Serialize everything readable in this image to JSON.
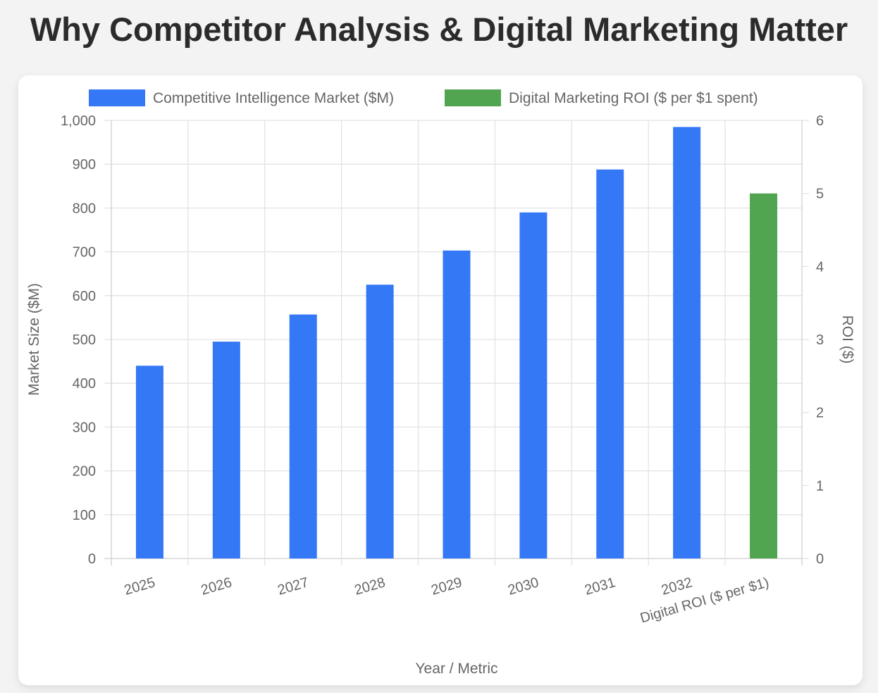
{
  "page": {
    "title": "Why Competitor Analysis & Digital Marketing Matter"
  },
  "colors": {
    "market": "#3478f6",
    "roi": "#52a550",
    "grid": "#e3e3e3",
    "axis_text": "#666666",
    "title_text": "#2b2b2b"
  },
  "chart_data": {
    "type": "bar",
    "title": "",
    "categories": [
      "2025",
      "2026",
      "2027",
      "2028",
      "2029",
      "2030",
      "2031",
      "2032",
      "Digital ROI ($ per $1)"
    ],
    "series": [
      {
        "name": "Competitive Intelligence Market ($M)",
        "axis": "left",
        "values": [
          440,
          495,
          557,
          625,
          703,
          790,
          888,
          985,
          null
        ]
      },
      {
        "name": "Digital Marketing ROI ($ per $1 spent)",
        "axis": "right",
        "values": [
          null,
          null,
          null,
          null,
          null,
          null,
          null,
          null,
          5
        ]
      }
    ],
    "xlabel": "Year / Metric",
    "ylabel": "Market Size ($M)",
    "y2label": "ROI ($)",
    "ylim": [
      0,
      1000
    ],
    "y2lim": [
      0,
      6
    ],
    "yticks": [
      "0",
      "100",
      "200",
      "300",
      "400",
      "500",
      "600",
      "700",
      "800",
      "900",
      "1,000"
    ],
    "y2ticks": [
      "0",
      "1",
      "2",
      "3",
      "4",
      "5",
      "6"
    ],
    "grid": true,
    "legend": "top-center"
  }
}
